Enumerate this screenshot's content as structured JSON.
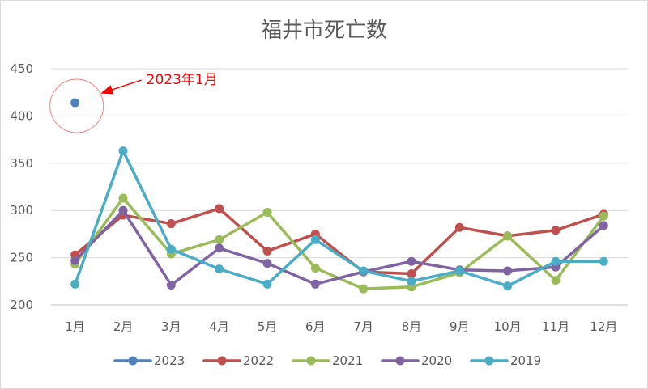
{
  "chart_data": {
    "type": "line",
    "title": "福井市死亡数",
    "categories": [
      "1月",
      "2月",
      "3月",
      "4月",
      "5月",
      "6月",
      "7月",
      "8月",
      "9月",
      "10月",
      "11月",
      "12月"
    ],
    "ylim": [
      200,
      450
    ],
    "yticks": [
      200,
      250,
      300,
      350,
      400,
      450
    ],
    "ytick_labels": [
      "200",
      "250",
      "300",
      "350",
      "400",
      "450"
    ],
    "grid": true,
    "legend_position": "bottom",
    "series": [
      {
        "name": "2023",
        "color": "#4f81bd",
        "values": [
          414,
          null,
          null,
          null,
          null,
          null,
          null,
          null,
          null,
          null,
          null,
          null
        ]
      },
      {
        "name": "2022",
        "color": "#c0504d",
        "values": [
          253,
          295,
          286,
          302,
          257,
          275,
          235,
          233,
          282,
          273,
          279,
          296
        ]
      },
      {
        "name": "2021",
        "color": "#9bbb59",
        "values": [
          243,
          313,
          254,
          269,
          298,
          239,
          217,
          219,
          234,
          273,
          226,
          294
        ]
      },
      {
        "name": "2020",
        "color": "#8064a2",
        "values": [
          247,
          300,
          221,
          260,
          244,
          222,
          235,
          246,
          237,
          236,
          240,
          284
        ]
      },
      {
        "name": "2019",
        "color": "#4bacc6",
        "values": [
          222,
          363,
          259,
          238,
          222,
          269,
          236,
          225,
          236,
          220,
          246,
          246
        ]
      }
    ],
    "annotation": {
      "text": "2023年1月",
      "color": "#ff0000",
      "target_category": "1月",
      "target_value": 414
    }
  }
}
